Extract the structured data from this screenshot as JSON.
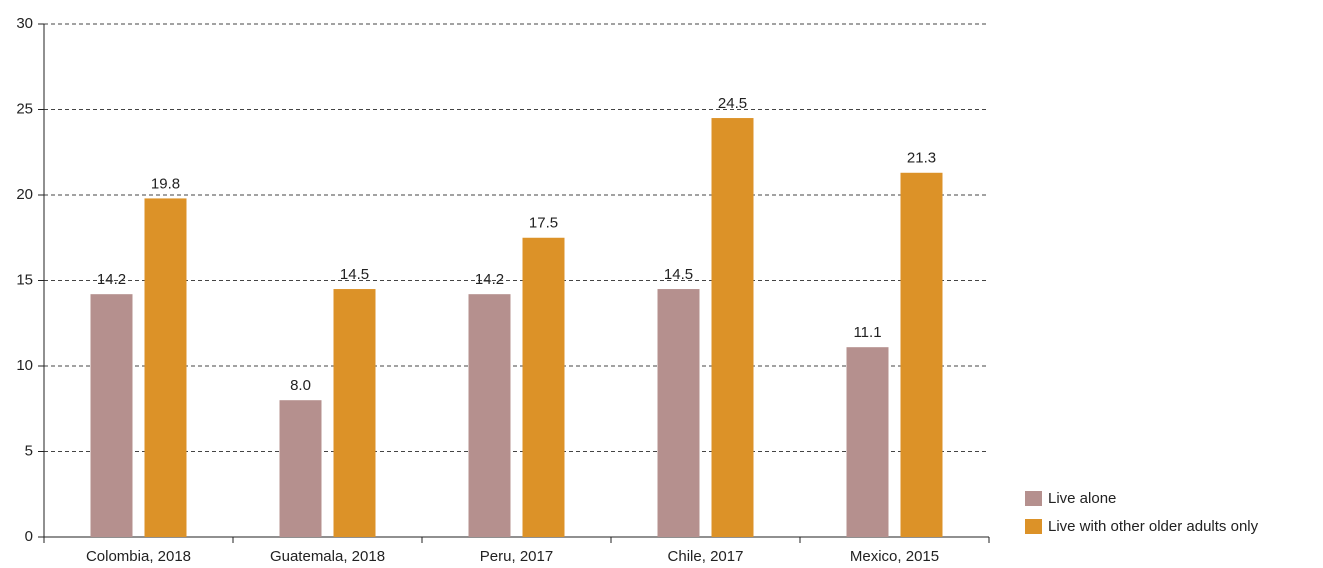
{
  "chart_data": {
    "type": "bar",
    "categories": [
      "Colombia, 2018",
      "Guatemala, 2018",
      "Peru, 2017",
      "Chile, 2017",
      "Mexico, 2015"
    ],
    "series": [
      {
        "name": "Live alone",
        "color": "#b5908e",
        "values": [
          14.2,
          8.0,
          14.2,
          14.5,
          11.1
        ],
        "value_labels": [
          "14.2",
          "8.0",
          "14.2",
          "14.5",
          "11.1"
        ]
      },
      {
        "name": "Live with other older adults only",
        "color": "#dc9228",
        "values": [
          19.8,
          14.5,
          17.5,
          24.5,
          21.3
        ],
        "value_labels": [
          "19.8",
          "14.5",
          "17.5",
          "24.5",
          "21.3"
        ]
      }
    ],
    "ylim": [
      0,
      30
    ],
    "yticks": [
      0,
      5,
      10,
      15,
      20,
      25,
      30
    ],
    "grid": true,
    "legend": "lower right"
  }
}
